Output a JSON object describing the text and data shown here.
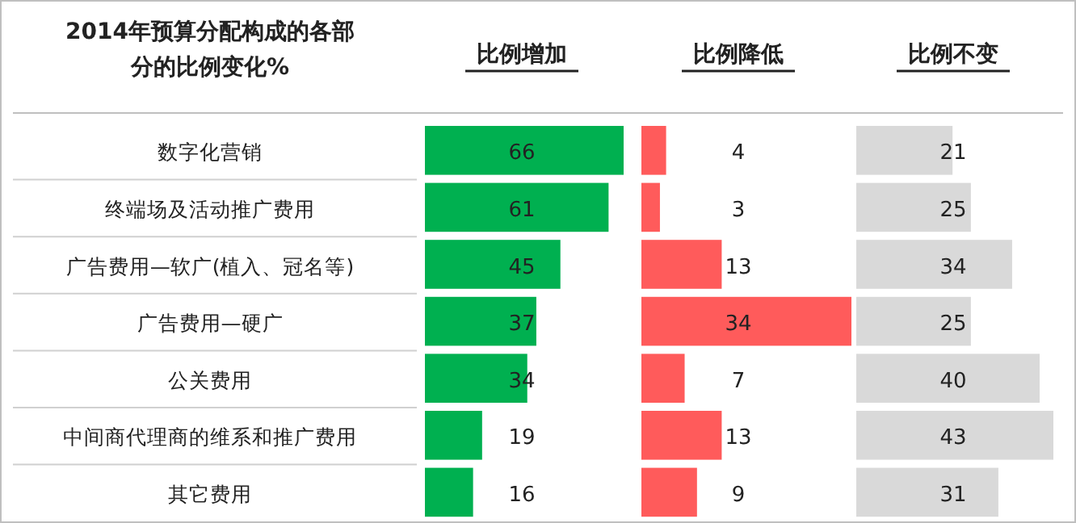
{
  "chart_data": [
    {
      "type": "bar",
      "orientation": "horizontal",
      "ylabel": "2014年预算分配构成的各部分的比例变化%",
      "title": "比例增加",
      "data_labels": true,
      "color": "#00b050",
      "categories": [
        "数字化营销",
        "终端场及活动推广费用",
        "广告费用—软广(植入、冠名等)",
        "广告费用—硬广",
        "公关费用",
        "中间商代理商的维系和推广费用",
        "其它费用"
      ],
      "values": [
        66,
        61,
        45,
        37,
        34,
        19,
        16
      ]
    },
    {
      "type": "bar",
      "orientation": "horizontal",
      "title": "比例降低",
      "data_labels": true,
      "color": "#ff5b5b",
      "tick_labels": false,
      "categories": [
        null,
        null,
        null,
        null,
        null,
        null,
        null
      ],
      "values": [
        4,
        3,
        13,
        34,
        7,
        13,
        9
      ]
    },
    {
      "type": "bar",
      "orientation": "horizontal",
      "title": "比例不变",
      "data_labels": true,
      "color": "#d9d9d9",
      "tick_labels": false,
      "categories": [
        null,
        null,
        null,
        null,
        null,
        null,
        null
      ],
      "values": [
        21,
        25,
        34,
        25,
        40,
        43,
        31
      ]
    }
  ]
}
